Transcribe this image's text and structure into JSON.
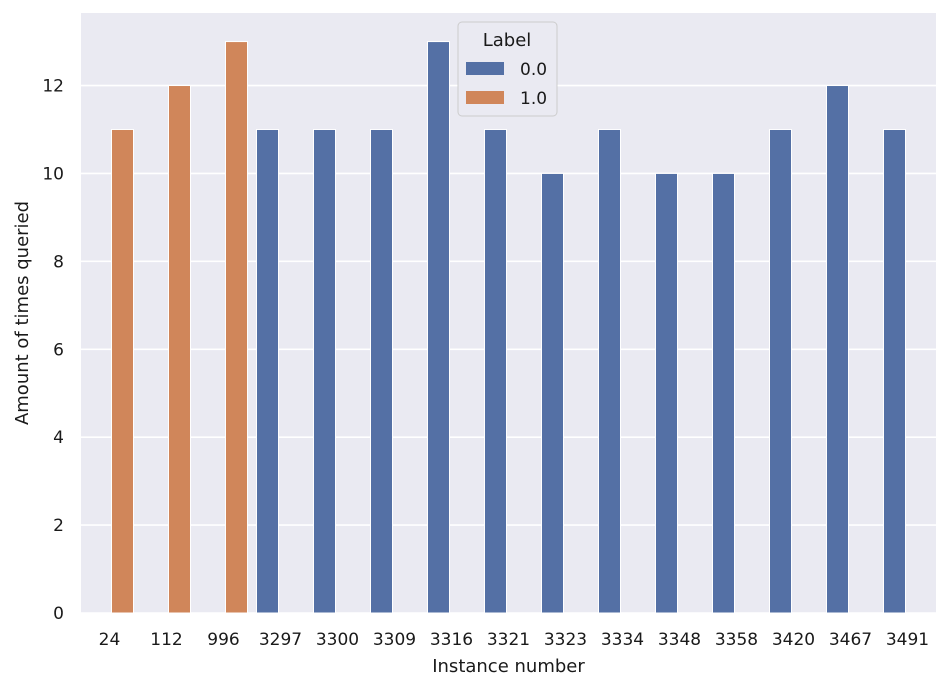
{
  "chart_data": {
    "type": "bar",
    "xlabel": "Instance number",
    "ylabel": "Amount of times queried",
    "ylim": [
      0,
      13.65
    ],
    "yticks": [
      0,
      2,
      4,
      6,
      8,
      10,
      12
    ],
    "categories": [
      "24",
      "112",
      "996",
      "3297",
      "3300",
      "3309",
      "3316",
      "3321",
      "3323",
      "3334",
      "3348",
      "3358",
      "3420",
      "3467",
      "3491"
    ],
    "series": [
      {
        "name": "0.0",
        "color": "#5470a5",
        "values": [
          null,
          null,
          null,
          11,
          11,
          11,
          13,
          11,
          10,
          11,
          10,
          10,
          11,
          12,
          11
        ]
      },
      {
        "name": "1.0",
        "color": "#d0865a",
        "values": [
          11,
          12,
          13,
          null,
          null,
          null,
          null,
          null,
          null,
          null,
          null,
          null,
          null,
          null,
          null
        ]
      }
    ],
    "legend": {
      "title": "Label",
      "placement": "top-center"
    },
    "grid": true,
    "background": "#eaeaf2"
  }
}
